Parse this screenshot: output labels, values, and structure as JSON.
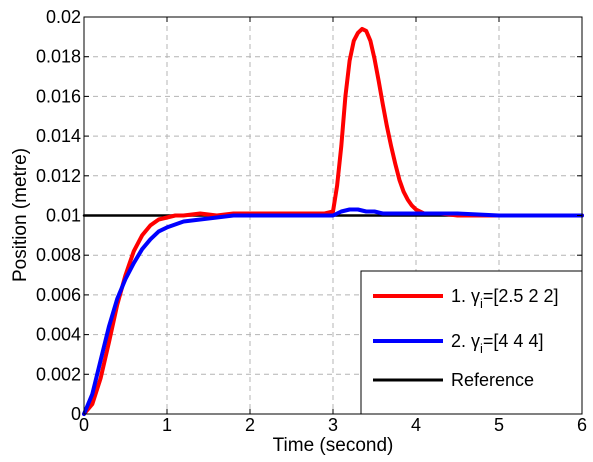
{
  "chart_data": {
    "type": "line",
    "title": "",
    "xlabel": "Time (second)",
    "ylabel": "Position (metre)",
    "xlim": [
      0,
      6
    ],
    "ylim": [
      0,
      0.02
    ],
    "x_ticks": [
      "0",
      "1",
      "2",
      "3",
      "4",
      "5",
      "6"
    ],
    "y_ticks": [
      "0",
      "0.002",
      "0.004",
      "0.006",
      "0.008",
      "0.01",
      "0.012",
      "0.014",
      "0.016",
      "0.018",
      "0.02"
    ],
    "grid": true,
    "legend_position": "bottom-right",
    "series": [
      {
        "name_prefix": "1. ",
        "name_symbol": "γ",
        "name_sub": "i",
        "name_suffix": "=[2.5 2 2]",
        "color": "#ff0000",
        "x": [
          0,
          0.1,
          0.2,
          0.3,
          0.4,
          0.5,
          0.6,
          0.7,
          0.8,
          0.9,
          1.0,
          1.1,
          1.2,
          1.4,
          1.6,
          1.8,
          2.0,
          2.5,
          2.9,
          3.0,
          3.05,
          3.1,
          3.15,
          3.2,
          3.25,
          3.3,
          3.35,
          3.4,
          3.45,
          3.5,
          3.55,
          3.6,
          3.65,
          3.7,
          3.75,
          3.8,
          3.85,
          3.9,
          3.95,
          4.0,
          4.05,
          4.1,
          4.2,
          4.3,
          4.5,
          5.0,
          6.0
        ],
        "y": [
          0,
          0.0005,
          0.0018,
          0.0036,
          0.0055,
          0.007,
          0.0082,
          0.009,
          0.0095,
          0.0098,
          0.0099,
          0.01,
          0.01,
          0.0101,
          0.01,
          0.0101,
          0.0101,
          0.0101,
          0.0101,
          0.0102,
          0.0115,
          0.0135,
          0.016,
          0.0178,
          0.0188,
          0.0192,
          0.0194,
          0.0193,
          0.0188,
          0.0179,
          0.0168,
          0.0156,
          0.0145,
          0.0135,
          0.0126,
          0.0118,
          0.0112,
          0.0108,
          0.0105,
          0.0103,
          0.0102,
          0.0101,
          0.0101,
          0.0101,
          0.01,
          0.01,
          0.01
        ]
      },
      {
        "name_prefix": "2. ",
        "name_symbol": "γ",
        "name_sub": "i",
        "name_suffix": "=[4 4 4]",
        "color": "#0000ff",
        "x": [
          0,
          0.1,
          0.2,
          0.3,
          0.4,
          0.5,
          0.6,
          0.7,
          0.8,
          0.9,
          1.0,
          1.2,
          1.4,
          1.6,
          1.8,
          2.0,
          2.5,
          3.0,
          3.1,
          3.2,
          3.3,
          3.4,
          3.5,
          3.6,
          3.8,
          4.0,
          4.5,
          5.0,
          6.0
        ],
        "y": [
          0,
          0.001,
          0.0027,
          0.0044,
          0.0058,
          0.0068,
          0.0076,
          0.0083,
          0.0088,
          0.0092,
          0.0094,
          0.0097,
          0.0098,
          0.0099,
          0.01,
          0.01,
          0.01,
          0.01,
          0.0102,
          0.0103,
          0.0103,
          0.0102,
          0.0102,
          0.0101,
          0.0101,
          0.0101,
          0.0101,
          0.01,
          0.01
        ]
      },
      {
        "name": "Reference",
        "color": "#000000",
        "x": [
          0,
          6
        ],
        "y": [
          0.01,
          0.01
        ]
      }
    ]
  }
}
